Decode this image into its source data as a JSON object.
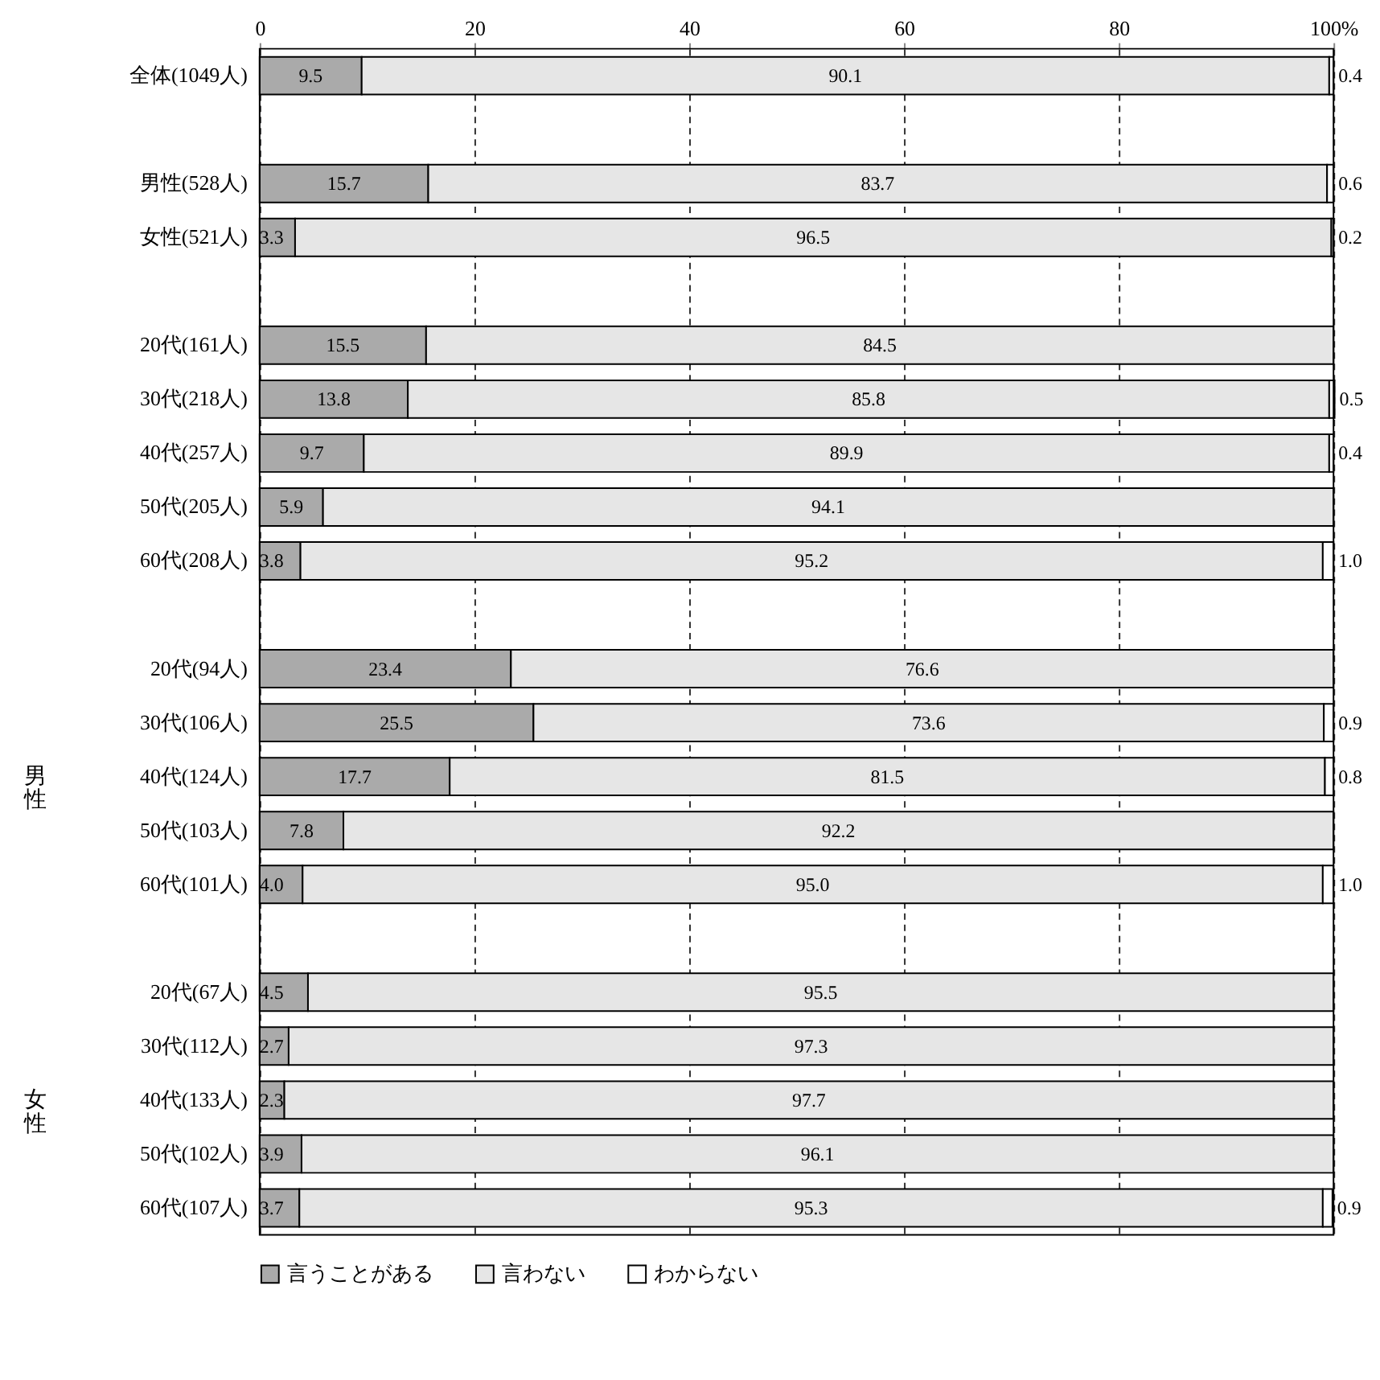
{
  "chart_data": {
    "type": "bar",
    "orientation": "horizontal",
    "stacked": true,
    "categories": [
      "全体(1049人)",
      null,
      "男性(528人)",
      "女性(521人)",
      null,
      "20代(161人)",
      "30代(218人)",
      "40代(257人)",
      "50代(205人)",
      "60代(208人)",
      null,
      "20代(94人)",
      "30代(106人)",
      "40代(124人)",
      "50代(103人)",
      "60代(101人)",
      null,
      "20代(67人)",
      "30代(112人)",
      "40代(133人)",
      "50代(102人)",
      "60代(107人)"
    ],
    "series": [
      {
        "name": "言うことがある",
        "color": "#aaaaaa",
        "values": [
          9.5,
          null,
          15.7,
          3.3,
          null,
          15.5,
          13.8,
          9.7,
          5.9,
          3.8,
          null,
          23.4,
          25.5,
          17.7,
          7.8,
          4.0,
          null,
          4.5,
          2.7,
          2.3,
          3.9,
          3.7
        ],
        "value_labels": [
          "9.5",
          null,
          "15.7",
          "3.3",
          null,
          "15.5",
          "13.8",
          "9.7",
          "5.9",
          "3.8",
          null,
          "23.4",
          "25.5",
          "17.7",
          "7.8",
          "4.0",
          null,
          "4.5",
          "2.7",
          "2.3",
          "3.9",
          "3.7"
        ]
      },
      {
        "name": "言わない",
        "color": "#e6e6e6",
        "values": [
          90.1,
          null,
          83.7,
          96.5,
          null,
          84.5,
          85.8,
          89.9,
          94.1,
          95.2,
          null,
          76.6,
          73.6,
          81.5,
          92.2,
          95.0,
          null,
          95.5,
          97.3,
          97.7,
          96.1,
          95.3
        ],
        "value_labels": [
          "90.1",
          null,
          "83.7",
          "96.5",
          null,
          "84.5",
          "85.8",
          "89.9",
          "94.1",
          "95.2",
          null,
          "76.6",
          "73.6",
          "81.5",
          "92.2",
          "95.0",
          null,
          "95.5",
          "97.3",
          "97.7",
          "96.1",
          "95.3"
        ]
      },
      {
        "name": "わからない",
        "color": "#ffffff",
        "values": [
          0.4,
          null,
          0.6,
          0.2,
          null,
          null,
          0.5,
          0.4,
          null,
          1.0,
          null,
          null,
          0.9,
          0.8,
          null,
          1.0,
          null,
          null,
          null,
          null,
          null,
          0.9
        ],
        "value_labels": [
          "0.4",
          null,
          "0.6",
          "0.2",
          null,
          null,
          "0.5",
          "0.4",
          null,
          "1.0",
          null,
          null,
          "0.9",
          "0.8",
          null,
          "1.0",
          null,
          null,
          null,
          null,
          null,
          "0.9"
        ]
      }
    ],
    "xlim": [
      0,
      100
    ],
    "xticks": [
      0,
      20,
      40,
      60,
      80,
      {
        "value": 100,
        "label": "100%"
      }
    ],
    "grid": "x",
    "line_style": "dashed",
    "legend": "bottom",
    "annotations": [
      "男性",
      "女性"
    ]
  }
}
